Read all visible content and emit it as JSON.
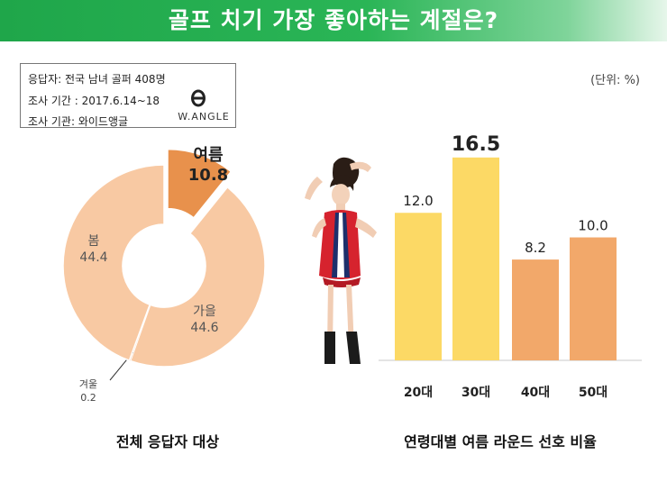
{
  "header": {
    "title": "골프 치기 가장 좋아하는 계절은?"
  },
  "info": {
    "respondents": "응답자: 전국 남녀 골퍼  408명",
    "period": "조사 기간 : 2017.6.14~18",
    "agency": "조사 기관: 와이드앵글",
    "logo_text": "W.ANGLE"
  },
  "unit": "(단위: %)",
  "colors": {
    "header_green": "#23ad4f",
    "donut_light": "#f8c9a3",
    "donut_summer": "#e8914c",
    "bar_yellow": "#fcd965",
    "bar_orange": "#f2a86a"
  },
  "captions": {
    "left": "전체 응답자 대상",
    "right": "연령대별 여름 라운드 선호 비율"
  },
  "chart_data": [
    {
      "type": "pie",
      "variant": "donut",
      "slices": [
        {
          "label": "여름",
          "value": 10.8,
          "color": "#e8914c",
          "exploded": true
        },
        {
          "label": "가을",
          "value": 44.6,
          "color": "#f8c9a3"
        },
        {
          "label": "겨울",
          "value": 0.2,
          "color": "#f8c9a3"
        },
        {
          "label": "봄",
          "value": 44.4,
          "color": "#f8c9a3"
        }
      ],
      "caption": "전체 응답자 대상"
    },
    {
      "type": "bar",
      "categories": [
        "20대",
        "30대",
        "40대",
        "50대"
      ],
      "values": [
        12.0,
        16.5,
        8.2,
        10.0
      ],
      "value_labels": [
        "12.0",
        "16.5",
        "8.2",
        "10.0"
      ],
      "colors": [
        "#fcd965",
        "#fcd965",
        "#f2a86a",
        "#f2a86a"
      ],
      "ylim": [
        0,
        17
      ],
      "grid": false,
      "caption": "연령대별 여름 라운드 선호 비율"
    }
  ]
}
